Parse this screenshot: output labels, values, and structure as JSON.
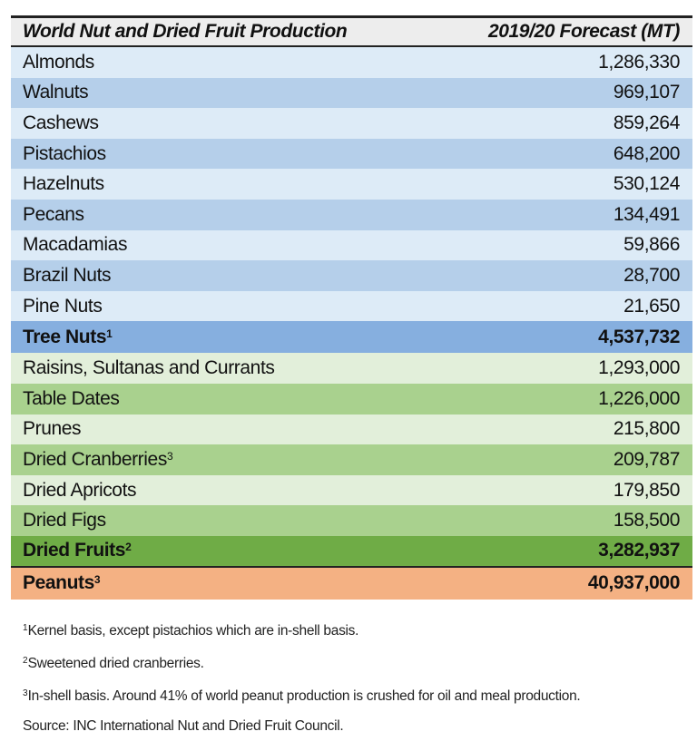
{
  "table": {
    "header": {
      "label": "World Nut and Dried Fruit Production",
      "value": "2019/20 Forecast (MT)"
    },
    "tree_nuts": [
      {
        "label": "Almonds",
        "value": "1,286,330"
      },
      {
        "label": "Walnuts",
        "value": "969,107"
      },
      {
        "label": "Cashews",
        "value": "859,264"
      },
      {
        "label": "Pistachios",
        "value": "648,200"
      },
      {
        "label": "Hazelnuts",
        "value": "530,124"
      },
      {
        "label": "Pecans",
        "value": "134,491"
      },
      {
        "label": "Macadamias",
        "value": "59,866"
      },
      {
        "label": "Brazil Nuts",
        "value": "28,700"
      },
      {
        "label": "Pine Nuts",
        "value": "21,650"
      }
    ],
    "tree_nuts_total": {
      "label": "Tree Nuts",
      "sup": "1",
      "value": "4,537,732"
    },
    "dried_fruits": [
      {
        "label": "Raisins, Sultanas and Currants",
        "sup": "",
        "value": "1,293,000"
      },
      {
        "label": "Table Dates",
        "sup": "",
        "value": "1,226,000"
      },
      {
        "label": "Prunes",
        "sup": "",
        "value": "215,800"
      },
      {
        "label": "Dried Cranberries",
        "sup": "3",
        "value": "209,787"
      },
      {
        "label": "Dried Apricots",
        "sup": "",
        "value": "179,850"
      },
      {
        "label": "Dried Figs",
        "sup": "",
        "value": "158,500"
      }
    ],
    "dried_fruits_total": {
      "label": "Dried Fruits",
      "sup": "2",
      "value": "3,282,937"
    },
    "peanuts": {
      "label": "Peanuts",
      "sup": "3",
      "value": "40,937,000"
    }
  },
  "footnotes": [
    {
      "sup": "1",
      "text": "Kernel basis, except pistachios which are in-shell basis."
    },
    {
      "sup": "2",
      "text": "Sweetened dried cranberries."
    },
    {
      "sup": "3",
      "text": "In-shell basis. Around 41% of world peanut production is crushed for oil and meal production."
    }
  ],
  "source": "Source: INC International Nut and Dried Fruit Council.",
  "colors": {
    "header": "#ededed",
    "nut_light": "#ddebf7",
    "nut_dark": "#b5cfea",
    "nut_total": "#86afdf",
    "fruit_light": "#e2efda",
    "fruit_dark": "#a9d18e",
    "fruit_total": "#6fac46",
    "peanuts": "#f4b183"
  }
}
